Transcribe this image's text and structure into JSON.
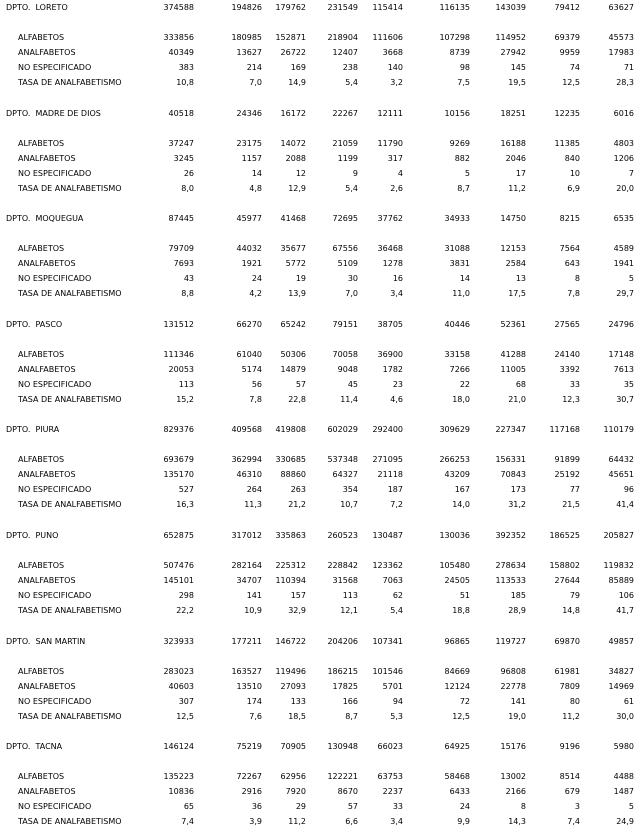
{
  "sections": [
    {
      "title": "DPTO.  LORETO",
      "values": [
        374588,
        194826,
        179762,
        231549,
        115414,
        116135,
        143039,
        79412,
        63627
      ],
      "rows": [
        {
          "label": "ALFABETOS",
          "values": [
            333856,
            180985,
            152871,
            218904,
            111606,
            107298,
            114952,
            69379,
            45573
          ]
        },
        {
          "label": "ANALFABETOS",
          "values": [
            40349,
            13627,
            26722,
            12407,
            3668,
            8739,
            27942,
            9959,
            17983
          ]
        },
        {
          "label": "NO ESPECIFICADO",
          "values": [
            383,
            214,
            169,
            238,
            140,
            98,
            145,
            74,
            71
          ]
        },
        {
          "label": "TASA DE ANALFABETISMO",
          "values": [
            "10,8",
            "7,0",
            "14,9",
            "5,4",
            "3,2",
            "7,5",
            "19,5",
            "12,5",
            "28,3"
          ]
        }
      ]
    },
    {
      "title": "DPTO.  MADRE DE DIOS",
      "values": [
        40518,
        24346,
        16172,
        22267,
        12111,
        10156,
        18251,
        12235,
        6016
      ],
      "rows": [
        {
          "label": "ALFABETOS",
          "values": [
            37247,
            23175,
            14072,
            21059,
            11790,
            9269,
            16188,
            11385,
            4803
          ]
        },
        {
          "label": "ANALFABETOS",
          "values": [
            3245,
            1157,
            2088,
            1199,
            317,
            882,
            2046,
            840,
            1206
          ]
        },
        {
          "label": "NO ESPECIFICADO",
          "values": [
            26,
            14,
            12,
            9,
            4,
            5,
            17,
            10,
            7
          ]
        },
        {
          "label": "TASA DE ANALFABETISMO",
          "values": [
            "8,0",
            "4,8",
            "12,9",
            "5,4",
            "2,6",
            "8,7",
            "11,2",
            "6,9",
            "20,0"
          ]
        }
      ]
    },
    {
      "title": "DPTO.  MOQUEGUA",
      "values": [
        87445,
        45977,
        41468,
        72695,
        37762,
        34933,
        14750,
        8215,
        6535
      ],
      "rows": [
        {
          "label": "ALFABETOS",
          "values": [
            79709,
            44032,
            35677,
            67556,
            36468,
            31088,
            12153,
            7564,
            4589
          ]
        },
        {
          "label": "ANALFABETOS",
          "values": [
            7693,
            1921,
            5772,
            5109,
            1278,
            3831,
            2584,
            643,
            1941
          ]
        },
        {
          "label": "NO ESPECIFICADO",
          "values": [
            43,
            24,
            19,
            30,
            16,
            14,
            13,
            8,
            5
          ]
        },
        {
          "label": "TASA DE ANALFABETISMO",
          "values": [
            "8,8",
            "4,2",
            "13,9",
            "7,0",
            "3,4",
            "11,0",
            "17,5",
            "7,8",
            "29,7"
          ]
        }
      ]
    },
    {
      "title": "DPTO.  PASCO",
      "values": [
        131512,
        66270,
        65242,
        79151,
        38705,
        40446,
        52361,
        27565,
        24796
      ],
      "rows": [
        {
          "label": "ALFABETOS",
          "values": [
            111346,
            61040,
            50306,
            70058,
            36900,
            33158,
            41288,
            24140,
            17148
          ]
        },
        {
          "label": "ANALFABETOS",
          "values": [
            20053,
            5174,
            14879,
            9048,
            1782,
            7266,
            11005,
            3392,
            7613
          ]
        },
        {
          "label": "NO ESPECIFICADO",
          "values": [
            113,
            56,
            57,
            45,
            23,
            22,
            68,
            33,
            35
          ]
        },
        {
          "label": "TASA DE ANALFABETISMO",
          "values": [
            "15,2",
            "7,8",
            "22,8",
            "11,4",
            "4,6",
            "18,0",
            "21,0",
            "12,3",
            "30,7"
          ]
        }
      ]
    },
    {
      "title": "DPTO.  PIURA",
      "values": [
        829376,
        409568,
        419808,
        602029,
        292400,
        309629,
        227347,
        117168,
        110179
      ],
      "rows": [
        {
          "label": "ALFABETOS",
          "values": [
            693679,
            362994,
            330685,
            537348,
            271095,
            266253,
            156331,
            91899,
            64432
          ]
        },
        {
          "label": "ANALFABETOS",
          "values": [
            135170,
            46310,
            88860,
            64327,
            21118,
            43209,
            70843,
            25192,
            45651
          ]
        },
        {
          "label": "NO ESPECIFICADO",
          "values": [
            527,
            264,
            263,
            354,
            187,
            167,
            173,
            77,
            96
          ]
        },
        {
          "label": "TASA DE ANALFABETISMO",
          "values": [
            "16,3",
            "11,3",
            "21,2",
            "10,7",
            "7,2",
            "14,0",
            "31,2",
            "21,5",
            "41,4"
          ]
        }
      ]
    },
    {
      "title": "DPTO.  PUNO",
      "values": [
        652875,
        317012,
        335863,
        260523,
        130487,
        130036,
        392352,
        186525,
        205827
      ],
      "rows": [
        {
          "label": "ALFABETOS",
          "values": [
            507476,
            282164,
            225312,
            228842,
            123362,
            105480,
            278634,
            158802,
            119832
          ]
        },
        {
          "label": "ANALFABETOS",
          "values": [
            145101,
            34707,
            110394,
            31568,
            7063,
            24505,
            113533,
            27644,
            85889
          ]
        },
        {
          "label": "NO ESPECIFICADO",
          "values": [
            298,
            141,
            157,
            113,
            62,
            51,
            185,
            79,
            106
          ]
        },
        {
          "label": "TASA DE ANALFABETISMO",
          "values": [
            "22,2",
            "10,9",
            "32,9",
            "12,1",
            "5,4",
            "18,8",
            "28,9",
            "14,8",
            "41,7"
          ]
        }
      ]
    },
    {
      "title": "DPTO.  SAN MARTIN",
      "values": [
        323933,
        177211,
        146722,
        204206,
        107341,
        96865,
        119727,
        69870,
        49857
      ],
      "rows": [
        {
          "label": "ALFABETOS",
          "values": [
            283023,
            163527,
            119496,
            186215,
            101546,
            84669,
            96808,
            61981,
            34827
          ]
        },
        {
          "label": "ANALFABETOS",
          "values": [
            40603,
            13510,
            27093,
            17825,
            5701,
            12124,
            22778,
            7809,
            14969
          ]
        },
        {
          "label": "NO ESPECIFICADO",
          "values": [
            307,
            174,
            133,
            166,
            94,
            72,
            141,
            80,
            61
          ]
        },
        {
          "label": "TASA DE ANALFABETISMO",
          "values": [
            "12,5",
            "7,6",
            "18,5",
            "8,7",
            "5,3",
            "12,5",
            "19,0",
            "11,2",
            "30,0"
          ]
        }
      ]
    },
    {
      "title": "DPTO.  TACNA",
      "values": [
        146124,
        75219,
        70905,
        130948,
        66023,
        64925,
        15176,
        9196,
        5980
      ],
      "rows": [
        {
          "label": "ALFABETOS",
          "values": [
            135223,
            72267,
            62956,
            122221,
            63753,
            58468,
            13002,
            8514,
            4488
          ]
        },
        {
          "label": "ANALFABETOS",
          "values": [
            10836,
            2916,
            7920,
            8670,
            2237,
            6433,
            2166,
            679,
            1487
          ]
        },
        {
          "label": "NO ESPECIFICADO",
          "values": [
            65,
            36,
            29,
            57,
            33,
            24,
            8,
            3,
            5
          ]
        },
        {
          "label": "TASA DE ANALFABETISMO",
          "values": [
            "7,4",
            "3,9",
            "11,2",
            "6,6",
            "3,4",
            "9,9",
            "14,3",
            "7,4",
            "24,9"
          ]
        }
      ]
    }
  ]
}
